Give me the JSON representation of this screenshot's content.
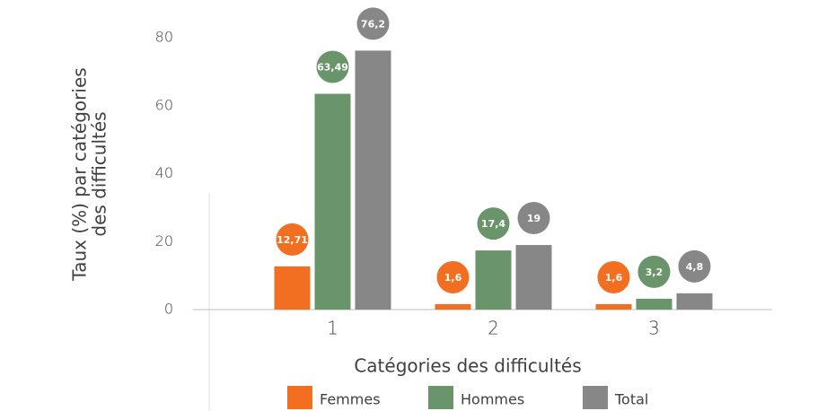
{
  "chart_data": {
    "type": "bar",
    "y_axis_label": [
      "Taux (%) par catégories",
      "des difficultés"
    ],
    "x_axis_label": "Catégories des difficultés",
    "categories": [
      "1",
      "2",
      "3"
    ],
    "series": [
      {
        "name": "Femmes",
        "color": "#f26f21",
        "values": [
          12.71,
          1.6,
          1.6
        ],
        "value_labels": [
          "12,71",
          "1,6",
          "1,6"
        ]
      },
      {
        "name": "Hommes",
        "color": "#6a946a",
        "values": [
          63.49,
          17.4,
          3.2
        ],
        "value_labels": [
          "63,49",
          "17,4",
          "3,2"
        ]
      },
      {
        "name": "Total",
        "color": "#878787",
        "values": [
          76.2,
          19,
          4.8
        ],
        "value_labels": [
          "76,2",
          "19",
          "4,8"
        ]
      }
    ],
    "ylim": [
      0,
      80
    ],
    "yticks": [
      0,
      20,
      40,
      60,
      80
    ],
    "grid": false,
    "legend": "bottom"
  }
}
